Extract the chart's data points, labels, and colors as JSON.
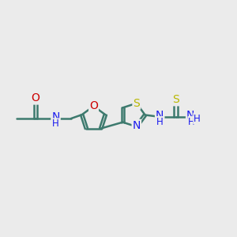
{
  "background_color": "#ebebeb",
  "bond_color": "#3d7a6e",
  "bond_width": 1.8,
  "atom_colors": {
    "O": "#cc0000",
    "N": "#1a1aee",
    "S": "#b8b800",
    "C": "#3d7a6e",
    "H": "#3d7a6e"
  },
  "font_size": 8.5,
  "fig_width": 3.0,
  "fig_height": 3.0,
  "dpi": 100
}
